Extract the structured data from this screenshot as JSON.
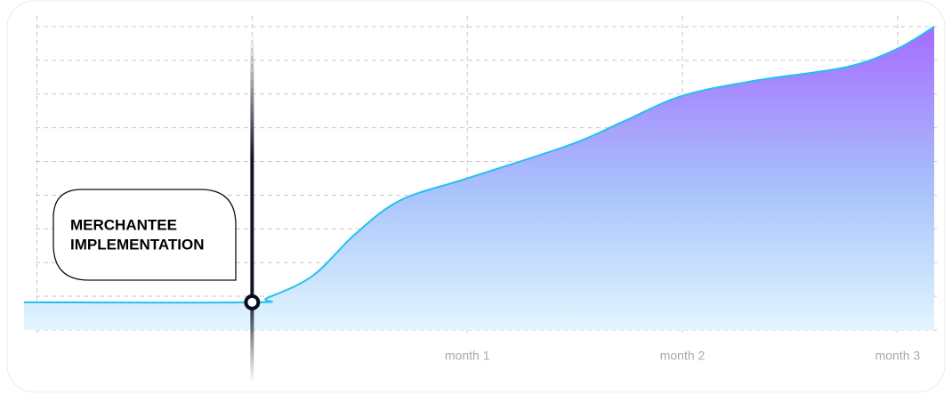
{
  "chart_data": {
    "type": "area",
    "color": "#22c1ee",
    "fill_top": "#a56cff",
    "fill_bottom": "#e2f6ff",
    "x": [
      -1.06,
      0,
      0.07,
      0.28,
      0.48,
      0.69,
      1.0,
      1.48,
      1.73,
      2.0,
      2.34,
      2.76,
      3.0,
      3.17
    ],
    "values": [
      0.82,
      0.82,
      0.95,
      1.6,
      2.85,
      3.85,
      4.5,
      5.5,
      6.2,
      6.95,
      7.4,
      7.8,
      8.35,
      9.0
    ],
    "xlim": [
      -1.06,
      3.17
    ],
    "ylim": [
      0,
      9
    ],
    "xticks": [
      -1,
      0,
      {
        "value": 1,
        "label": "month 1"
      },
      {
        "value": 2,
        "label": "month 2"
      },
      {
        "value": 3,
        "label": "month 3"
      }
    ],
    "yticks": [
      0,
      1,
      2,
      3,
      4,
      5,
      6,
      7,
      8,
      9
    ],
    "grid": true,
    "annotation": {
      "x": 0,
      "lines": [
        "MERCHANTEE",
        "IMPLEMENTATION"
      ]
    }
  }
}
